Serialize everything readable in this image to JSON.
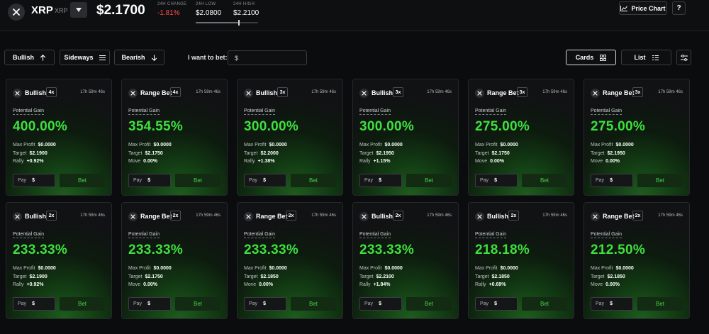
{
  "header": {
    "coin_name": "XRP",
    "coin_symbol": "XRP",
    "price": "$2.1700",
    "change_label": "24H CHANGE",
    "change_value": "-1.81%",
    "low_label": "24H LOW",
    "low_value": "$2.0800",
    "high_label": "24H HIGH",
    "high_value": "$2.2100",
    "range_position": 0.69,
    "price_chart_label": "Price Chart",
    "help_label": "?"
  },
  "filters": {
    "bullish": "Bullish",
    "sideways": "Sideways",
    "bearish": "Bearish",
    "bet_label": "I want to bet:",
    "bet_placeholder": "$",
    "cards_label": "Cards",
    "list_label": "List"
  },
  "card_labels": {
    "potential_gain": "Potential Gain",
    "max_profit": "Max Profit",
    "target": "Target",
    "pay": "Pay",
    "currency": "$",
    "bet": "Bet"
  },
  "cards": [
    {
      "type": "Bullish",
      "mult": "4x",
      "time": "17h 59m 46s",
      "gain": "400.00%",
      "max_profit": "$0.0000",
      "target": "$2.1900",
      "stat_label": "Rally",
      "stat_value": "+0.92%"
    },
    {
      "type": "Range Bet",
      "mult": "4x",
      "time": "17h 59m 46s",
      "gain": "354.55%",
      "max_profit": "$0.0000",
      "target": "$2.1750",
      "stat_label": "Move",
      "stat_value": "0.00%"
    },
    {
      "type": "Bullish",
      "mult": "3x",
      "time": "17h 59m 46s",
      "gain": "300.00%",
      "max_profit": "$0.0000",
      "target": "$2.2000",
      "stat_label": "Rally",
      "stat_value": "+1.38%"
    },
    {
      "type": "Bullish",
      "mult": "3x",
      "time": "17h 59m 46s",
      "gain": "300.00%",
      "max_profit": "$0.0000",
      "target": "$2.1950",
      "stat_label": "Rally",
      "stat_value": "+1.15%"
    },
    {
      "type": "Range Bet",
      "mult": "3x",
      "time": "17h 59m 46s",
      "gain": "275.00%",
      "max_profit": "$0.0000",
      "target": "$2.1750",
      "stat_label": "Move",
      "stat_value": "0.00%"
    },
    {
      "type": "Range Bet",
      "mult": "3x",
      "time": "17h 59m 46s",
      "gain": "275.00%",
      "max_profit": "$0.0000",
      "target": "$2.1950",
      "stat_label": "Move",
      "stat_value": "0.00%"
    },
    {
      "type": "Bullish",
      "mult": "2x",
      "time": "17h 59m 46s",
      "gain": "233.33%",
      "max_profit": "$0.0000",
      "target": "$2.1900",
      "stat_label": "Rally",
      "stat_value": "+0.92%"
    },
    {
      "type": "Range Bet",
      "mult": "2x",
      "time": "17h 59m 46s",
      "gain": "233.33%",
      "max_profit": "$0.0000",
      "target": "$2.1750",
      "stat_label": "Move",
      "stat_value": "0.00%"
    },
    {
      "type": "Range Bet",
      "mult": "2x",
      "time": "17h 59m 46s",
      "gain": "233.33%",
      "max_profit": "$0.0000",
      "target": "$2.1850",
      "stat_label": "Move",
      "stat_value": "0.00%"
    },
    {
      "type": "Bullish",
      "mult": "2x",
      "time": "17h 59m 46s",
      "gain": "233.33%",
      "max_profit": "$0.0000",
      "target": "$2.2100",
      "stat_label": "Rally",
      "stat_value": "+1.84%"
    },
    {
      "type": "Bullish",
      "mult": "2x",
      "time": "17h 59m 46s",
      "gain": "218.18%",
      "max_profit": "$0.0000",
      "target": "$2.1850",
      "stat_label": "Rally",
      "stat_value": "+0.69%"
    },
    {
      "type": "Range Bet",
      "mult": "2x",
      "time": "17h 59m 46s",
      "gain": "212.50%",
      "max_profit": "$0.0000",
      "target": "$2.1850",
      "stat_label": "Move",
      "stat_value": "0.00%"
    }
  ],
  "colors": {
    "gain_green": "#3ee03e",
    "negative_red": "#ff4d4d",
    "background": "#0b0c0d"
  }
}
